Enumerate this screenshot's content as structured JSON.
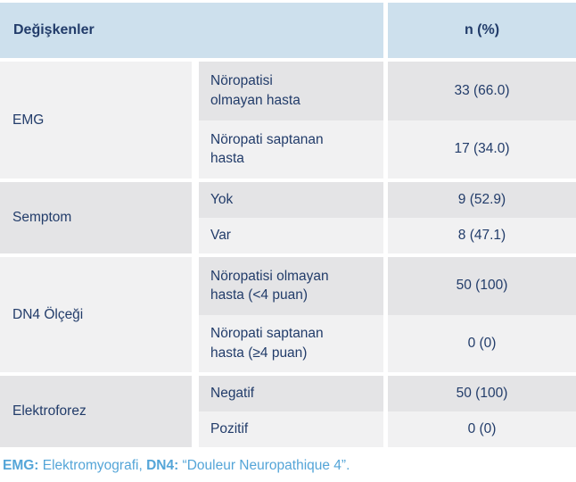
{
  "table": {
    "header": {
      "variables": "Değişkenler",
      "n_pct": "n (%)"
    },
    "groups": [
      {
        "label": "EMG",
        "rows": [
          {
            "label": "Nöropatisi\nolmayan hasta",
            "value": "33 (66.0)"
          },
          {
            "label": "Nöropati saptanan\nhasta",
            "value": "17 (34.0)"
          }
        ]
      },
      {
        "label": "Semptom",
        "rows": [
          {
            "label": "Yok",
            "value": "9 (52.9)"
          },
          {
            "label": "Var",
            "value": "8 (47.1)"
          }
        ]
      },
      {
        "label": "DN4 Ölçeği",
        "rows": [
          {
            "label": "Nöropatisi olmayan\nhasta (<4 puan)",
            "value": "50 (100)"
          },
          {
            "label": "Nöropati saptanan\nhasta (≥4 puan)",
            "value": "0 (0)"
          }
        ]
      },
      {
        "label": "Elektroforez",
        "rows": [
          {
            "label": "Negatif",
            "value": "50 (100)"
          },
          {
            "label": "Pozitif",
            "value": "0 (0)"
          }
        ]
      }
    ],
    "footnote": {
      "abbr1": "EMG:",
      "def1": " Elektromyografi, ",
      "abbr2": "DN4:",
      "def2": " “Douleur Neuropathique 4”."
    }
  },
  "colors": {
    "header_bg": "#cde0ed",
    "text_navy": "#223c6a",
    "row_shade_dark": "#e4e4e6",
    "row_shade_light": "#f1f1f2",
    "footnote_blue": "#54a5d8"
  },
  "chart_data": {
    "type": "table",
    "columns": [
      "Değişkenler",
      "",
      "n (%)"
    ],
    "rows": [
      [
        "EMG",
        "Nöropatisi olmayan hasta",
        "33 (66.0)"
      ],
      [
        "EMG",
        "Nöropati saptanan hasta",
        "17 (34.0)"
      ],
      [
        "Semptom",
        "Yok",
        "9 (52.9)"
      ],
      [
        "Semptom",
        "Var",
        "8 (47.1)"
      ],
      [
        "DN4 Ölçeği",
        "Nöropatisi olmayan hasta (<4 puan)",
        "50 (100)"
      ],
      [
        "DN4 Ölçeği",
        "Nöropati saptanan hasta (≥4 puan)",
        "0 (0)"
      ],
      [
        "Elektroforez",
        "Negatif",
        "50 (100)"
      ],
      [
        "Elektroforez",
        "Pozitif",
        "0 (0)"
      ]
    ]
  }
}
